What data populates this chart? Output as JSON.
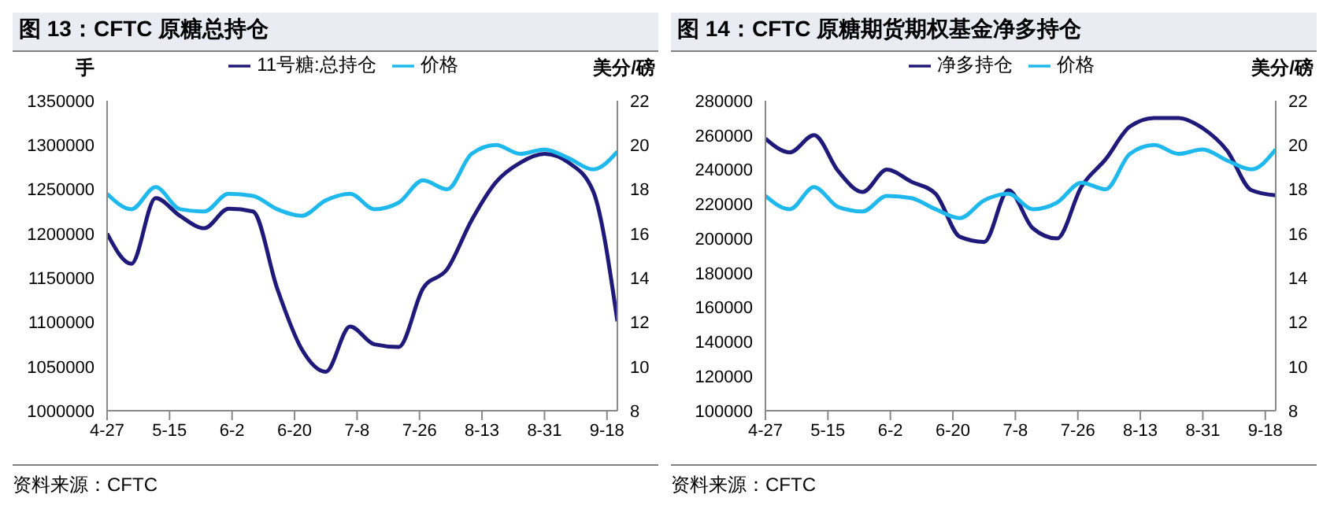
{
  "chart_data": [
    {
      "type": "line",
      "title": "图 13：CFTC 原糖总持仓",
      "ylabel": "手",
      "y2label": "美分/磅",
      "legend": "top",
      "marker": "none",
      "annotations": [
        "资料来源：CFTC"
      ],
      "x": [
        "--04-27",
        "--05-04",
        "--05-11",
        "--05-18",
        "--05-25",
        "--06-01",
        "--06-08",
        "--06-15",
        "--06-22",
        "--06-29",
        "--07-06",
        "--07-13",
        "--07-20",
        "--07-27",
        "--08-03",
        "--08-10",
        "--08-17",
        "--08-24",
        "--08-31",
        "--09-07",
        "--09-14",
        "--09-21"
      ],
      "xlim": [
        "--04-27",
        "--09-21"
      ],
      "xticks": [
        {
          "value": "--04-27",
          "label": "4-27"
        },
        {
          "value": "--05-15",
          "label": "5-15"
        },
        {
          "value": "--06-02",
          "label": "6-2"
        },
        {
          "value": "--06-20",
          "label": "6-20"
        },
        {
          "value": "--07-08",
          "label": "7-8"
        },
        {
          "value": "--07-26",
          "label": "7-26"
        },
        {
          "value": "--08-13",
          "label": "8-13"
        },
        {
          "value": "--08-31",
          "label": "8-31"
        },
        {
          "value": "--09-18",
          "label": "9-18"
        }
      ],
      "ylim": [
        1000000,
        1350000
      ],
      "yticks": [
        1000000,
        1050000,
        1100000,
        1150000,
        1200000,
        1250000,
        1300000,
        1350000
      ],
      "y2lim": [
        8,
        22
      ],
      "y2ticks": [
        8,
        10,
        12,
        14,
        16,
        18,
        20,
        22
      ],
      "series": [
        {
          "name": "11号糖:总持仓",
          "color": "#1f1a7a",
          "values": [
            1200000,
            1166000,
            1240000,
            1220000,
            1206000,
            1228000,
            1225000,
            1138000,
            1070000,
            1044000,
            1095000,
            1075000,
            1072000,
            1138000,
            1160000,
            1215000,
            1258000,
            1280000,
            1290000,
            1280000,
            1248000,
            1101000
          ]
        },
        {
          "name": "价格",
          "color": "#1fb8ec",
          "axis": "y2",
          "values": [
            17.8,
            17.1,
            18.1,
            17.1,
            17.0,
            17.8,
            17.7,
            17.1,
            16.8,
            17.5,
            17.8,
            17.1,
            17.4,
            18.4,
            18.0,
            19.6,
            20.0,
            19.6,
            19.8,
            19.4,
            18.9,
            19.7
          ]
        }
      ]
    },
    {
      "type": "line",
      "title": "图 14：CFTC 原糖期货期权基金净多持仓",
      "y2label": "美分/磅",
      "legend": "top",
      "marker": "none",
      "annotations": [
        "资料来源：CFTC"
      ],
      "x": [
        "--04-27",
        "--05-04",
        "--05-11",
        "--05-18",
        "--05-25",
        "--06-01",
        "--06-08",
        "--06-15",
        "--06-22",
        "--06-29",
        "--07-06",
        "--07-13",
        "--07-20",
        "--07-27",
        "--08-03",
        "--08-10",
        "--08-17",
        "--08-24",
        "--08-31",
        "--09-07",
        "--09-14",
        "--09-21"
      ],
      "xlim": [
        "--04-27",
        "--09-21"
      ],
      "xticks": [
        {
          "value": "--04-27",
          "label": "4-27"
        },
        {
          "value": "--05-15",
          "label": "5-15"
        },
        {
          "value": "--06-02",
          "label": "6-2"
        },
        {
          "value": "--06-20",
          "label": "6-20"
        },
        {
          "value": "--07-08",
          "label": "7-8"
        },
        {
          "value": "--07-26",
          "label": "7-26"
        },
        {
          "value": "--08-13",
          "label": "8-13"
        },
        {
          "value": "--08-31",
          "label": "8-31"
        },
        {
          "value": "--09-18",
          "label": "9-18"
        }
      ],
      "ylim": [
        100000,
        280000
      ],
      "yticks": [
        100000,
        120000,
        140000,
        160000,
        180000,
        200000,
        220000,
        240000,
        260000,
        280000
      ],
      "y2lim": [
        8,
        22
      ],
      "y2ticks": [
        8,
        10,
        12,
        14,
        16,
        18,
        20,
        22
      ],
      "series": [
        {
          "name": "净多持仓",
          "color": "#1f1a7a",
          "values": [
            258000,
            250000,
            260000,
            239000,
            227000,
            240000,
            233000,
            226000,
            201000,
            198000,
            228000,
            206000,
            200000,
            230000,
            246000,
            265000,
            270000,
            270000,
            264000,
            251000,
            228000,
            225000
          ]
        },
        {
          "name": "价格",
          "color": "#1fb8ec",
          "axis": "y2",
          "values": [
            17.7,
            17.1,
            18.1,
            17.2,
            17.0,
            17.7,
            17.6,
            17.1,
            16.7,
            17.5,
            17.8,
            17.1,
            17.4,
            18.3,
            18.0,
            19.6,
            20.0,
            19.6,
            19.8,
            19.3,
            18.9,
            19.8
          ]
        }
      ]
    }
  ]
}
